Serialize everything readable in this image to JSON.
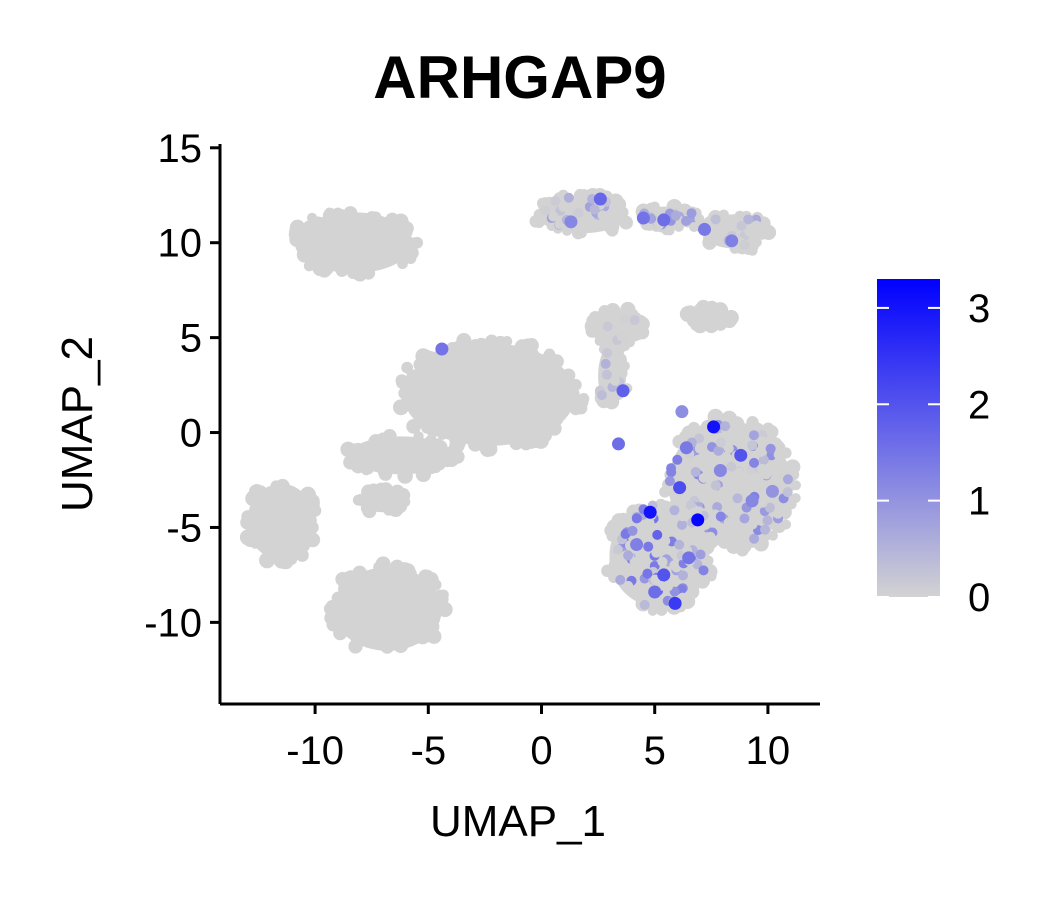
{
  "chart_data": {
    "type": "scatter",
    "title": "ARHGAP9",
    "xlabel": "UMAP_1",
    "ylabel": "UMAP_2",
    "xlim": [
      -14.2,
      12.3
    ],
    "ylim": [
      -14.3,
      15.2
    ],
    "x_ticks": [
      {
        "value": -10,
        "label": "-10"
      },
      {
        "value": -5,
        "label": "-5"
      },
      {
        "value": 0,
        "label": "0"
      },
      {
        "value": 5,
        "label": "5"
      },
      {
        "value": 10,
        "label": "10"
      }
    ],
    "y_ticks": [
      {
        "value": 15,
        "label": "15"
      },
      {
        "value": 10,
        "label": "10"
      },
      {
        "value": 5,
        "label": "5"
      },
      {
        "value": 0,
        "label": "0"
      },
      {
        "value": -5,
        "label": "-5"
      },
      {
        "value": -10,
        "label": "-10"
      }
    ],
    "grid": false,
    "legend": {
      "type": "colorbar",
      "placement": "right",
      "range": [
        0,
        3.3
      ],
      "ticks": [
        {
          "value": 0,
          "label": "0"
        },
        {
          "value": 1,
          "label": "1"
        },
        {
          "value": 2,
          "label": "2"
        },
        {
          "value": 3,
          "label": "3"
        }
      ],
      "color_low": "#d3d3d3",
      "color_high": "#0000ff"
    },
    "clusters": [
      {
        "id": "c-top-left",
        "cx": -8.3,
        "cy": 10.0,
        "rx": 2.6,
        "ry": 1.6,
        "expression": 0
      },
      {
        "id": "c-left",
        "cx": -11.5,
        "cy": -4.7,
        "rx": 1.5,
        "ry": 2.0,
        "expression": 0
      },
      {
        "id": "c-bottom",
        "cx": -6.8,
        "cy": -9.3,
        "rx": 2.4,
        "ry": 2.2,
        "expression": 0
      },
      {
        "id": "c-center",
        "cx": -2.3,
        "cy": 2.0,
        "rx": 3.8,
        "ry": 2.7,
        "expression": 0
      },
      {
        "id": "c-center-left-arm",
        "cx": -6.2,
        "cy": -1.2,
        "rx": 2.3,
        "ry": 1.0,
        "expression": 0
      },
      {
        "id": "c-center-lower",
        "cx": -7.0,
        "cy": -3.6,
        "rx": 1.0,
        "ry": 0.6,
        "expression": 0
      },
      {
        "id": "c-upper-mid",
        "cx": 3.3,
        "cy": 5.5,
        "rx": 1.1,
        "ry": 1.0,
        "expression": 0.2
      },
      {
        "id": "c-upper-mid-arm",
        "cx": 3.0,
        "cy": 3.0,
        "rx": 0.5,
        "ry": 1.5,
        "expression": 0.4
      },
      {
        "id": "c-small-right",
        "cx": 7.4,
        "cy": 6.1,
        "rx": 0.9,
        "ry": 0.5,
        "expression": 0
      },
      {
        "id": "c-top-right-a",
        "cx": 1.8,
        "cy": 11.5,
        "rx": 2.0,
        "ry": 1.0,
        "expression": 0.6
      },
      {
        "id": "c-top-right-b",
        "cx": 5.5,
        "cy": 11.4,
        "rx": 1.3,
        "ry": 0.5,
        "expression": 0.7
      },
      {
        "id": "c-top-right-c",
        "cx": 8.5,
        "cy": 10.6,
        "rx": 1.4,
        "ry": 0.9,
        "expression": 0.5
      },
      {
        "id": "c-right-large",
        "cx": 8.3,
        "cy": -2.7,
        "rx": 2.7,
        "ry": 3.3,
        "expression": 1.0
      },
      {
        "id": "c-right-lower",
        "cx": 5.2,
        "cy": -6.5,
        "rx": 2.2,
        "ry": 2.7,
        "expression": 1.3
      }
    ],
    "highlight_points": [
      {
        "x": 7.6,
        "y": 0.3,
        "value": 3.0
      },
      {
        "x": 4.8,
        "y": -4.2,
        "value": 3.0
      },
      {
        "x": 6.9,
        "y": -4.6,
        "value": 3.2
      },
      {
        "x": 5.9,
        "y": -9.0,
        "value": 2.4
      },
      {
        "x": 5.4,
        "y": -7.5,
        "value": 2.0
      },
      {
        "x": 6.1,
        "y": -2.9,
        "value": 2.1
      },
      {
        "x": 8.8,
        "y": -1.2,
        "value": 2.0
      },
      {
        "x": 3.6,
        "y": 2.2,
        "value": 1.8
      },
      {
        "x": 4.5,
        "y": 11.3,
        "value": 1.5
      },
      {
        "x": 5.4,
        "y": 11.2,
        "value": 1.6
      },
      {
        "x": 2.6,
        "y": 12.3,
        "value": 1.7
      },
      {
        "x": 1.3,
        "y": 11.1,
        "value": 1.2
      },
      {
        "x": 8.4,
        "y": 10.1,
        "value": 1.3
      },
      {
        "x": 7.2,
        "y": 10.7,
        "value": 1.4
      },
      {
        "x": -4.4,
        "y": 4.4,
        "value": 1.5
      },
      {
        "x": 6.4,
        "y": -0.8,
        "value": 1.4
      },
      {
        "x": 9.3,
        "y": -3.6,
        "value": 1.2
      },
      {
        "x": 4.2,
        "y": -5.9,
        "value": 1.3
      },
      {
        "x": 6.5,
        "y": -6.6,
        "value": 1.5
      },
      {
        "x": 7.9,
        "y": -2.0,
        "value": 1.2
      },
      {
        "x": 10.2,
        "y": -3.1,
        "value": 1.0
      },
      {
        "x": 3.4,
        "y": -0.6,
        "value": 1.6
      },
      {
        "x": 6.2,
        "y": 1.1,
        "value": 1.1
      },
      {
        "x": 5.0,
        "y": -8.4,
        "value": 1.6
      }
    ]
  }
}
